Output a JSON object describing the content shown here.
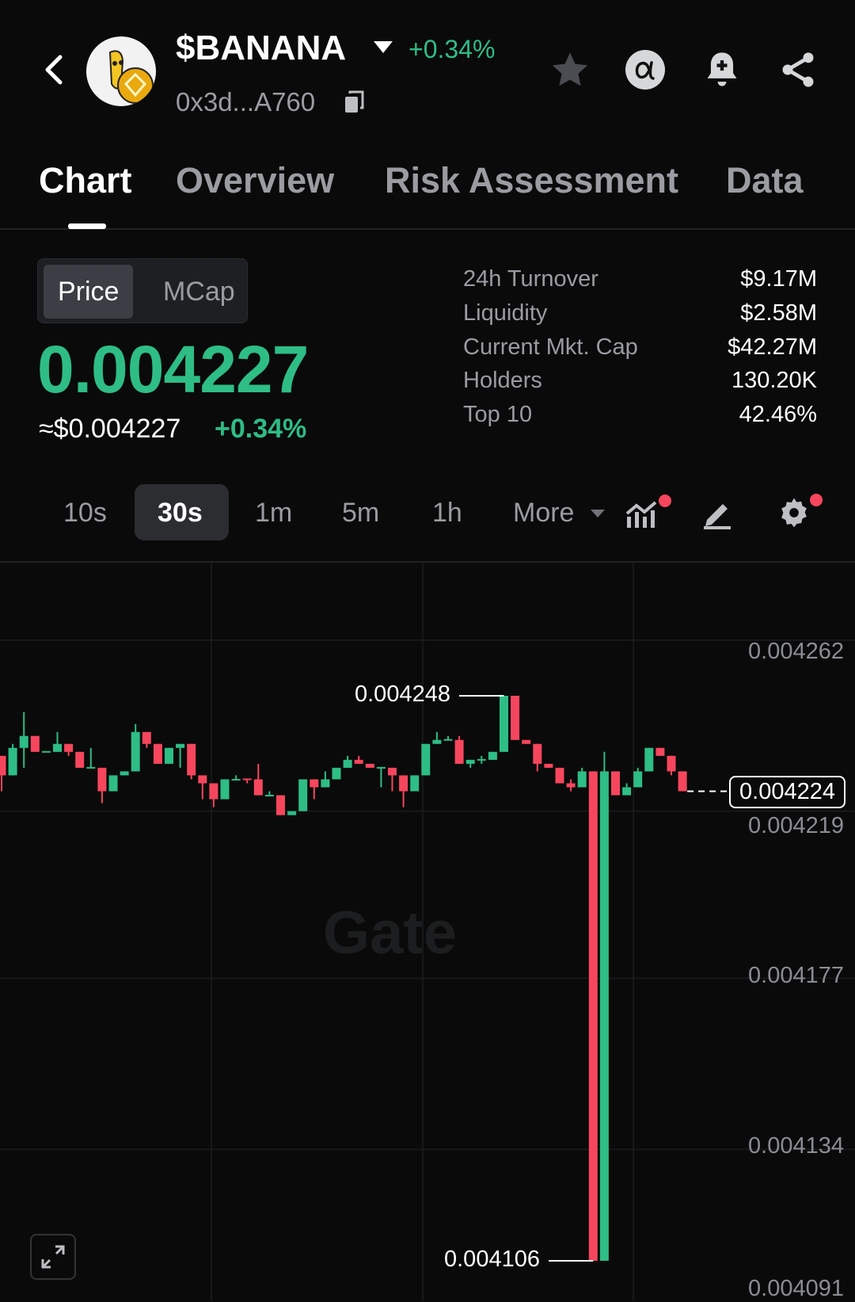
{
  "header": {
    "title": "$BANANA",
    "change": "+0.34%",
    "address": "0x3d...A760",
    "icons": [
      "back-icon",
      "token-logo",
      "caret-down-icon",
      "copy-icon",
      "star-icon",
      "alpha-icon",
      "bell-plus-icon",
      "share-icon"
    ]
  },
  "tabs": [
    {
      "label": "Chart",
      "active": true
    },
    {
      "label": "Overview"
    },
    {
      "label": "Risk Assessment"
    },
    {
      "label": "Data"
    }
  ],
  "toggle": {
    "price": "Price",
    "mcap": "MCap",
    "selected": "Price"
  },
  "price": {
    "value": "0.004227",
    "usd": "≈$0.004227",
    "change": "+0.34%"
  },
  "stats": [
    {
      "label": "24h Turnover",
      "value": "$9.17M"
    },
    {
      "label": "Liquidity",
      "value": "$2.58M"
    },
    {
      "label": "Current Mkt. Cap",
      "value": "$42.27M"
    },
    {
      "label": "Holders",
      "value": "130.20K"
    },
    {
      "label": "Top 10",
      "value": "42.46%"
    }
  ],
  "timeframes": [
    "10s",
    "30s",
    "1m",
    "5m",
    "1h"
  ],
  "timeframe_selected": "30s",
  "more_label": "More",
  "colors": {
    "up": "#2ebd85",
    "down": "#f6465d",
    "background": "#0a0a0a"
  },
  "chart": {
    "watermark": "Gate",
    "current_price": "0.004224",
    "high_label": "0.004248",
    "low_label": "0.004106",
    "yticks": [
      "0.004262",
      "0.004219",
      "0.004177",
      "0.004134",
      "0.004091"
    ]
  },
  "chart_data": {
    "type": "candlestick",
    "interval": "30s",
    "ohlc_fields": [
      "open",
      "high",
      "low",
      "close"
    ],
    "yticks": [
      0.004262,
      0.004219,
      0.004177,
      0.004134,
      0.004091
    ],
    "max_marker": 0.004248,
    "min_marker": 0.004106,
    "last": 0.004224,
    "candles": [
      [
        0.0042329,
        0.0042329,
        0.004224,
        0.004228
      ],
      [
        0.004228,
        0.0042359,
        0.004228,
        0.0042349
      ],
      [
        0.0042349,
        0.0042439,
        0.0042299,
        0.0042379
      ],
      [
        0.0042379,
        0.0042379,
        0.0042339,
        0.0042339
      ],
      [
        0.0042338,
        0.0042341,
        0.0042338,
        0.0042341
      ],
      [
        0.0042339,
        0.0042389,
        0.0042339,
        0.0042359
      ],
      [
        0.0042359,
        0.0042359,
        0.0042329,
        0.0042339
      ],
      [
        0.0042339,
        0.0042339,
        0.0042299,
        0.0042299
      ],
      [
        0.0042298,
        0.0042349,
        0.0042298,
        0.0042301
      ],
      [
        0.0042299,
        0.0042299,
        0.004221,
        0.004224
      ],
      [
        0.004224,
        0.004228,
        0.004224,
        0.004228
      ],
      [
        0.004228,
        0.004229,
        0.004228,
        0.004229
      ],
      [
        0.004229,
        0.0042409,
        0.004229,
        0.0042389
      ],
      [
        0.0042389,
        0.0042389,
        0.0042349,
        0.0042359
      ],
      [
        0.0042359,
        0.0042359,
        0.0042309,
        0.0042309
      ],
      [
        0.0042309,
        0.0042349,
        0.0042309,
        0.0042349
      ],
      [
        0.0042349,
        0.0042359,
        0.0042299,
        0.0042359
      ],
      [
        0.0042359,
        0.0042359,
        0.004227,
        0.004228
      ],
      [
        0.004228,
        0.004228,
        0.004222,
        0.004226
      ],
      [
        0.004226,
        0.004226,
        0.00422,
        0.004222
      ],
      [
        0.004222,
        0.004227,
        0.004222,
        0.004227
      ],
      [
        0.0042268,
        0.004228,
        0.0042268,
        0.0042271
      ],
      [
        0.0042272,
        0.0042272,
        0.004226,
        0.0042269
      ],
      [
        0.004227,
        0.0042309,
        0.004223,
        0.004223
      ],
      [
        0.0042228,
        0.004224,
        0.0042228,
        0.0042231
      ],
      [
        0.004223,
        0.004223,
        0.004218,
        0.004218
      ],
      [
        0.004218,
        0.004219,
        0.004218,
        0.004219
      ],
      [
        0.004219,
        0.004227,
        0.004219,
        0.004227
      ],
      [
        0.004227,
        0.004227,
        0.004222,
        0.004225
      ],
      [
        0.004225,
        0.004229,
        0.004225,
        0.004227
      ],
      [
        0.004227,
        0.0042299,
        0.004227,
        0.0042299
      ],
      [
        0.0042299,
        0.0042329,
        0.0042299,
        0.0042319
      ],
      [
        0.0042319,
        0.0042329,
        0.0042309,
        0.0042309
      ],
      [
        0.0042309,
        0.0042309,
        0.0042299,
        0.0042299
      ],
      [
        0.0042298,
        0.0042301,
        0.004225,
        0.0042301
      ],
      [
        0.0042299,
        0.0042299,
        0.004224,
        0.004228
      ],
      [
        0.004228,
        0.004228,
        0.00422,
        0.004224
      ],
      [
        0.004224,
        0.004228,
        0.004224,
        0.004228
      ],
      [
        0.004228,
        0.0042359,
        0.004228,
        0.0042359
      ],
      [
        0.0042359,
        0.0042389,
        0.0042359,
        0.0042369
      ],
      [
        0.0042368,
        0.0042379,
        0.0042368,
        0.0042371
      ],
      [
        0.0042369,
        0.0042379,
        0.0042309,
        0.0042309
      ],
      [
        0.0042309,
        0.0042319,
        0.0042299,
        0.0042319
      ],
      [
        0.0042318,
        0.0042329,
        0.0042309,
        0.0042321
      ],
      [
        0.0042319,
        0.0042339,
        0.0042319,
        0.0042339
      ],
      [
        0.0042339,
        0.004248,
        0.0042339,
        0.004248
      ],
      [
        0.004248,
        0.004248,
        0.0042369,
        0.0042369
      ],
      [
        0.0042369,
        0.0042369,
        0.0042359,
        0.0042359
      ],
      [
        0.0042359,
        0.0042359,
        0.004229,
        0.0042309
      ],
      [
        0.0042309,
        0.0042309,
        0.0042299,
        0.0042299
      ],
      [
        0.0042299,
        0.0042299,
        0.004226,
        0.004226
      ],
      [
        0.004226,
        0.004227,
        0.004224,
        0.004225
      ],
      [
        0.004225,
        0.0042299,
        0.004225,
        0.004229
      ],
      [
        0.004229,
        0.004229,
        0.004106,
        0.004106
      ],
      [
        0.004106,
        0.0042339,
        0.004106,
        0.004229
      ],
      [
        0.004229,
        0.004229,
        0.004223,
        0.004223
      ],
      [
        0.004223,
        0.004226,
        0.004223,
        0.004225
      ],
      [
        0.004225,
        0.0042299,
        0.004225,
        0.004229
      ],
      [
        0.004229,
        0.0042349,
        0.004229,
        0.0042349
      ],
      [
        0.0042349,
        0.0042349,
        0.0042329,
        0.0042329
      ],
      [
        0.0042329,
        0.0042329,
        0.004228,
        0.004229
      ],
      [
        0.004229,
        0.004229,
        0.004224,
        0.004224
      ]
    ]
  }
}
